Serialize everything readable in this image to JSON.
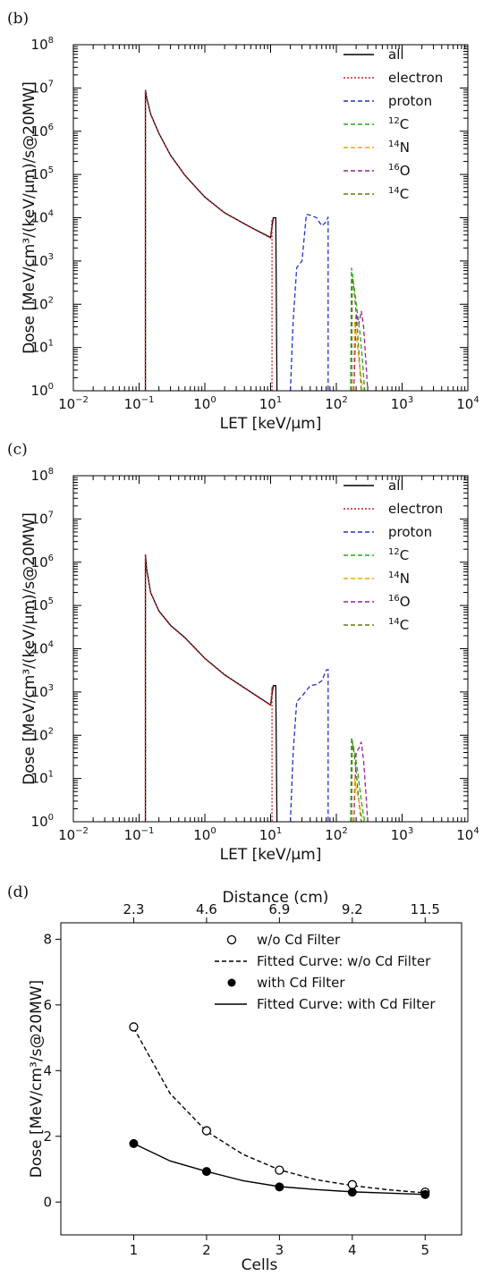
{
  "chart_data": [
    {
      "panel": "(b)",
      "type": "line",
      "xscale": "log",
      "yscale": "log",
      "xlim": [
        0.01,
        10000
      ],
      "ylim": [
        1,
        100000000
      ],
      "x_tick_labels": [
        {
          "base": "10",
          "exp": "−2"
        },
        {
          "base": "10",
          "exp": "−1"
        },
        {
          "base": "10",
          "exp": "0"
        },
        {
          "base": "10",
          "exp": "1"
        },
        {
          "base": "10",
          "exp": "2"
        },
        {
          "base": "10",
          "exp": "3"
        },
        {
          "base": "10",
          "exp": "4"
        }
      ],
      "y_tick_labels": [
        {
          "base": "10",
          "exp": "0"
        },
        {
          "base": "10",
          "exp": "1"
        },
        {
          "base": "10",
          "exp": "2"
        },
        {
          "base": "10",
          "exp": "3"
        },
        {
          "base": "10",
          "exp": "4"
        },
        {
          "base": "10",
          "exp": "5"
        },
        {
          "base": "10",
          "exp": "6"
        },
        {
          "base": "10",
          "exp": "7"
        },
        {
          "base": "10",
          "exp": "8"
        }
      ],
      "xlabel": "LET [keV/μm]",
      "ylabel": "Dose [MeV/cm³/(keV/μm)/s@20MW]",
      "legend": [
        {
          "pre": "",
          "sup": "",
          "label": "all",
          "color": "#000000",
          "dash": "solid"
        },
        {
          "pre": "",
          "sup": "",
          "label": "electron",
          "color": "#cc2222",
          "dash": "dotted"
        },
        {
          "pre": "",
          "sup": "",
          "label": "proton",
          "color": "#2233cc",
          "dash": "dashed"
        },
        {
          "pre": "",
          "sup": "12",
          "label": "C",
          "color": "#22aa22",
          "dash": "dashed"
        },
        {
          "pre": "",
          "sup": "14",
          "label": "N",
          "color": "#f0a500",
          "dash": "dashed"
        },
        {
          "pre": "",
          "sup": "16",
          "label": "O",
          "color": "#992299",
          "dash": "dashed"
        },
        {
          "pre": "",
          "sup": "14",
          "label": "C",
          "color": "#667711",
          "dash": "dashed"
        }
      ],
      "legend_position": "top-right",
      "series": [
        {
          "name": "all",
          "x": [
            0.125,
            0.125,
            0.13,
            0.15,
            0.2,
            0.3,
            0.5,
            1,
            2,
            5,
            10,
            11,
            12,
            12.5,
            12.5
          ],
          "y": [
            1,
            9000000,
            6000000,
            2500000,
            900000,
            280000,
            95000,
            30000,
            13000,
            6000,
            3500,
            10000,
            10000,
            1,
            1
          ]
        },
        {
          "name": "electron",
          "x": [
            0.124,
            0.124,
            0.13,
            0.15,
            0.2,
            0.3,
            0.5,
            1,
            2,
            5,
            10,
            10.5,
            10.5
          ],
          "y": [
            1,
            8800000,
            5900000,
            2450000,
            880000,
            275000,
            93000,
            29500,
            12800,
            5900,
            3400,
            9000,
            1
          ]
        },
        {
          "name": "proton",
          "x": [
            20,
            22,
            25,
            30,
            35,
            40,
            50,
            60,
            70,
            75,
            75
          ],
          "y": [
            1,
            40,
            700,
            1000,
            12000,
            11500,
            10000,
            6500,
            8000,
            10500,
            1
          ]
        },
        {
          "name": "12C",
          "x": [
            165,
            170,
            190,
            210,
            230,
            250,
            270
          ],
          "y": [
            1,
            700,
            200,
            60,
            20,
            5,
            1
          ]
        },
        {
          "name": "14N",
          "x": [
            180,
            190,
            205,
            220,
            240,
            260
          ],
          "y": [
            1,
            40,
            15,
            5,
            2,
            1
          ]
        },
        {
          "name": "16O",
          "x": [
            185,
            200,
            220,
            240,
            260,
            280,
            300
          ],
          "y": [
            1,
            60,
            35,
            70,
            30,
            5,
            1
          ]
        },
        {
          "name": "14C",
          "x": [
            170,
            175,
            190,
            205,
            220,
            240
          ],
          "y": [
            1,
            500,
            150,
            40,
            8,
            1
          ]
        }
      ]
    },
    {
      "panel": "(c)",
      "type": "line",
      "xscale": "log",
      "yscale": "log",
      "xlim": [
        0.01,
        10000
      ],
      "ylim": [
        1,
        100000000
      ],
      "x_tick_labels": [
        {
          "base": "10",
          "exp": "−2"
        },
        {
          "base": "10",
          "exp": "−1"
        },
        {
          "base": "10",
          "exp": "0"
        },
        {
          "base": "10",
          "exp": "1"
        },
        {
          "base": "10",
          "exp": "2"
        },
        {
          "base": "10",
          "exp": "3"
        },
        {
          "base": "10",
          "exp": "4"
        }
      ],
      "y_tick_labels": [
        {
          "base": "10",
          "exp": "0"
        },
        {
          "base": "10",
          "exp": "1"
        },
        {
          "base": "10",
          "exp": "2"
        },
        {
          "base": "10",
          "exp": "3"
        },
        {
          "base": "10",
          "exp": "4"
        },
        {
          "base": "10",
          "exp": "5"
        },
        {
          "base": "10",
          "exp": "6"
        },
        {
          "base": "10",
          "exp": "7"
        },
        {
          "base": "10",
          "exp": "8"
        }
      ],
      "xlabel": "LET [keV/μm]",
      "ylabel": "Dose [MeV/cm³/(keV/μm)/s@20MW]",
      "legend": [
        {
          "pre": "",
          "sup": "",
          "label": "all",
          "color": "#000000",
          "dash": "solid"
        },
        {
          "pre": "",
          "sup": "",
          "label": "electron",
          "color": "#cc2222",
          "dash": "dotted"
        },
        {
          "pre": "",
          "sup": "",
          "label": "proton",
          "color": "#2233cc",
          "dash": "dashed"
        },
        {
          "pre": "",
          "sup": "12",
          "label": "C",
          "color": "#22aa22",
          "dash": "dashed"
        },
        {
          "pre": "",
          "sup": "14",
          "label": "N",
          "color": "#f0a500",
          "dash": "dashed"
        },
        {
          "pre": "",
          "sup": "16",
          "label": "O",
          "color": "#992299",
          "dash": "dashed"
        },
        {
          "pre": "",
          "sup": "14",
          "label": "C",
          "color": "#667711",
          "dash": "dashed"
        }
      ],
      "legend_position": "top-right",
      "series": [
        {
          "name": "all",
          "x": [
            0.125,
            0.125,
            0.13,
            0.15,
            0.2,
            0.3,
            0.5,
            1,
            2,
            5,
            10,
            11,
            12,
            12.5,
            12.5
          ],
          "y": [
            1,
            1500000,
            700000,
            200000,
            75000,
            35000,
            18000,
            6000,
            2500,
            1000,
            500,
            1400,
            1400,
            1,
            1
          ]
        },
        {
          "name": "electron",
          "x": [
            0.124,
            0.124,
            0.13,
            0.15,
            0.2,
            0.3,
            0.5,
            1,
            2,
            5,
            10,
            10.5,
            10.5
          ],
          "y": [
            1,
            1450000,
            680000,
            195000,
            73000,
            34000,
            17500,
            5900,
            2450,
            980,
            490,
            1300,
            1
          ]
        },
        {
          "name": "proton",
          "x": [
            20,
            22,
            25,
            30,
            40,
            50,
            60,
            70,
            75,
            75
          ],
          "y": [
            1,
            40,
            600,
            800,
            1400,
            1500,
            1800,
            3200,
            3300,
            1
          ]
        },
        {
          "name": "12C",
          "x": [
            165,
            170,
            190,
            210,
            230,
            250,
            270
          ],
          "y": [
            1,
            90,
            40,
            15,
            5,
            2,
            1
          ]
        },
        {
          "name": "14N",
          "x": [
            180,
            190,
            205,
            220,
            240,
            260
          ],
          "y": [
            1,
            10,
            5,
            3,
            1.5,
            1
          ]
        },
        {
          "name": "16O",
          "x": [
            185,
            200,
            220,
            240,
            260,
            280,
            300
          ],
          "y": [
            1,
            40,
            50,
            70,
            25,
            5,
            1
          ]
        },
        {
          "name": "14C",
          "x": [
            170,
            175,
            190,
            205,
            220,
            240
          ],
          "y": [
            1,
            70,
            30,
            10,
            3,
            1
          ]
        }
      ]
    },
    {
      "panel": "(d)",
      "type": "scatter",
      "xlim": [
        0,
        5.5
      ],
      "ylim": [
        -1,
        8.5
      ],
      "x_ticks": [
        1,
        2,
        3,
        4,
        5
      ],
      "y_ticks": [
        0,
        2,
        4,
        6,
        8
      ],
      "top_axis_label": "Distance (cm)",
      "top_ticks": [
        {
          "at": 1,
          "label": "2.3"
        },
        {
          "at": 2,
          "label": "4.6"
        },
        {
          "at": 3,
          "label": "6.9"
        },
        {
          "at": 4,
          "label": "9.2"
        },
        {
          "at": 5,
          "label": "11.5"
        }
      ],
      "xlabel": "Cells",
      "ylabel": "Dose  [MeV/cm³/s@20MW]",
      "legend": [
        {
          "label": "w/o Cd Filter",
          "marker": "open-circle"
        },
        {
          "label": "Fitted Curve: w/o Cd Filter",
          "marker": "dashed-line"
        },
        {
          "label": "with Cd Filter",
          "marker": "filled-circle"
        },
        {
          "label": "Fitted Curve: with Cd Filter",
          "marker": "solid-line"
        }
      ],
      "legend_position": "top-right",
      "series": [
        {
          "name": "w/o Cd Filter",
          "x": [
            1,
            2,
            3,
            4,
            5
          ],
          "y": [
            5.33,
            2.17,
            0.97,
            0.53,
            0.3
          ]
        },
        {
          "name": "Fitted Curve: w/o Cd Filter",
          "x": [
            1,
            1.5,
            2,
            2.5,
            3,
            3.5,
            4,
            4.5,
            5
          ],
          "y": [
            5.3,
            3.3,
            2.15,
            1.45,
            0.98,
            0.68,
            0.5,
            0.37,
            0.28
          ]
        },
        {
          "name": "with Cd Filter",
          "x": [
            1,
            2,
            3,
            4,
            5
          ],
          "y": [
            1.78,
            0.93,
            0.46,
            0.3,
            0.23
          ]
        },
        {
          "name": "Fitted Curve: with Cd Filter",
          "x": [
            1,
            1.5,
            2,
            2.5,
            3,
            3.5,
            4,
            4.5,
            5
          ],
          "y": [
            1.78,
            1.25,
            0.93,
            0.65,
            0.47,
            0.38,
            0.31,
            0.27,
            0.23
          ]
        }
      ]
    }
  ]
}
